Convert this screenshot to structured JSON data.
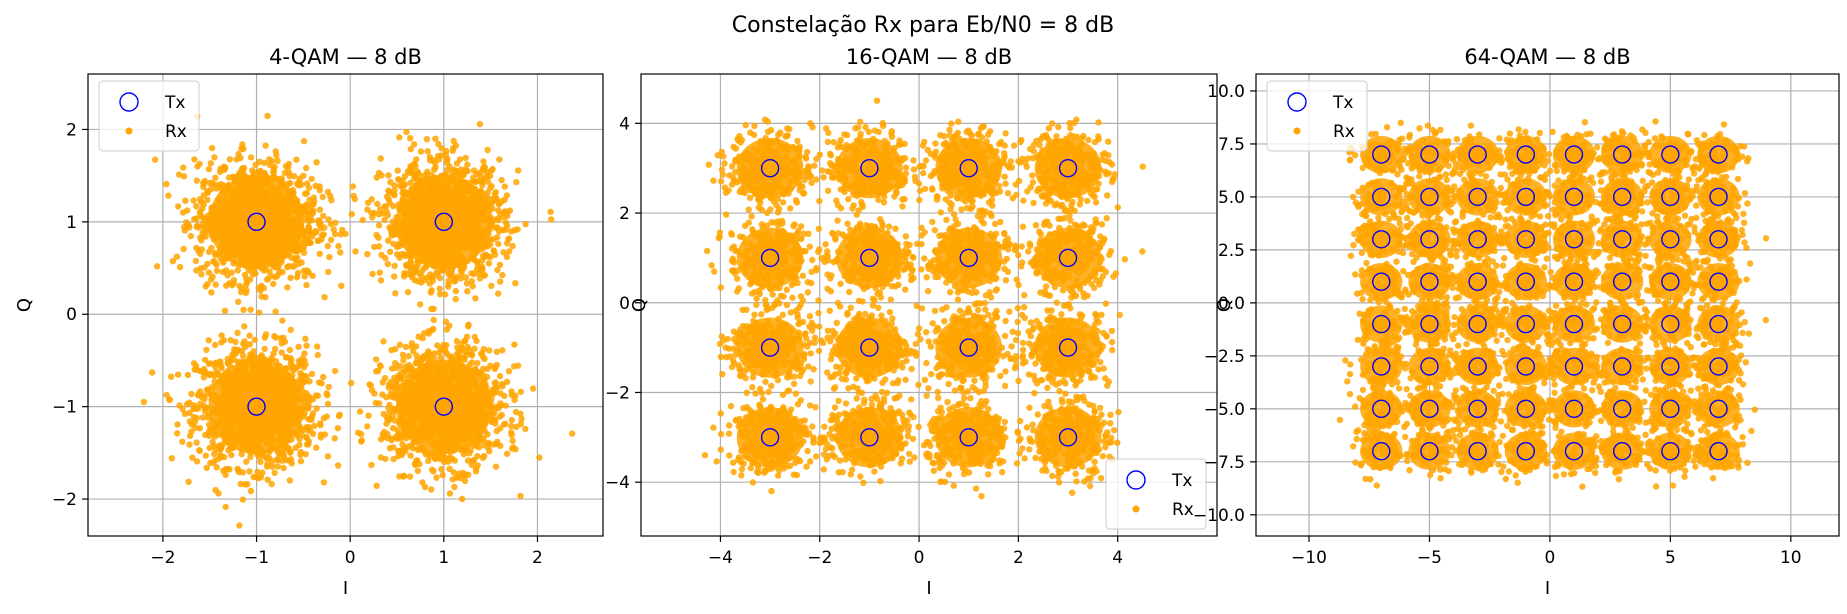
{
  "figure_title": "Constelação Rx para Eb/N0 = 8 dB",
  "colors": {
    "tx": "#0000ff",
    "rx": "#ffa500",
    "grid": "#b0b0b0"
  },
  "chart_data": [
    {
      "type": "scatter",
      "title": "4-QAM — 8 dB",
      "xlabel": "I",
      "ylabel": "Q",
      "xlim": [
        -2.8,
        2.7
      ],
      "ylim": [
        -2.4,
        2.6
      ],
      "xticks": [
        -2,
        -1,
        0,
        1,
        2
      ],
      "yticks": [
        -2,
        -1,
        0,
        1,
        2
      ],
      "grid": true,
      "legend": {
        "placement": "top-left",
        "entries": [
          "Tx",
          "Rx"
        ]
      },
      "series": [
        {
          "name": "Tx",
          "marker": "open-circle",
          "levels": [
            -1,
            1
          ]
        },
        {
          "name": "Rx",
          "marker": "filled-dot",
          "noise_std": 0.32,
          "levels": [
            -1,
            1
          ]
        }
      ]
    },
    {
      "type": "scatter",
      "title": "16-QAM — 8 dB",
      "xlabel": "I",
      "ylabel": "Q",
      "xlim": [
        -5.6,
        6.0
      ],
      "ylim": [
        -5.2,
        5.1
      ],
      "xticks": [
        -4,
        -2,
        0,
        2,
        4
      ],
      "yticks": [
        -4,
        -2,
        0,
        2,
        4
      ],
      "grid": true,
      "legend": {
        "placement": "bottom-right",
        "entries": [
          "Tx",
          "Rx"
        ]
      },
      "series": [
        {
          "name": "Tx",
          "marker": "open-circle",
          "levels": [
            -3,
            -1,
            1,
            3
          ]
        },
        {
          "name": "Rx",
          "marker": "filled-dot",
          "noise_std": 0.42,
          "levels": [
            -3,
            -1,
            1,
            3
          ]
        }
      ]
    },
    {
      "type": "scatter",
      "title": "64-QAM — 8 dB",
      "xlabel": "I",
      "ylabel": "Q",
      "xlim": [
        -12.2,
        12.0
      ],
      "ylim": [
        -11.0,
        10.8
      ],
      "xticks": [
        -10,
        -5,
        0,
        5,
        10
      ],
      "yticks": [
        -10.0,
        -7.5,
        -5.0,
        -2.5,
        0.0,
        2.5,
        5.0,
        7.5,
        10.0
      ],
      "ytick_labels": [
        "−10.0",
        "−7.5",
        "−5.0",
        "−2.5",
        "0.0",
        "2.5",
        "5.0",
        "7.5",
        "10.0"
      ],
      "grid": true,
      "legend": {
        "placement": "top-left",
        "entries": [
          "Tx",
          "Rx"
        ]
      },
      "series": [
        {
          "name": "Tx",
          "marker": "open-circle",
          "levels": [
            -7,
            -5,
            -3,
            -1,
            1,
            3,
            5,
            7
          ]
        },
        {
          "name": "Rx",
          "marker": "filled-dot",
          "noise_std": 0.55,
          "levels": [
            -7,
            -5,
            -3,
            -1,
            1,
            3,
            5,
            7
          ]
        }
      ]
    }
  ]
}
